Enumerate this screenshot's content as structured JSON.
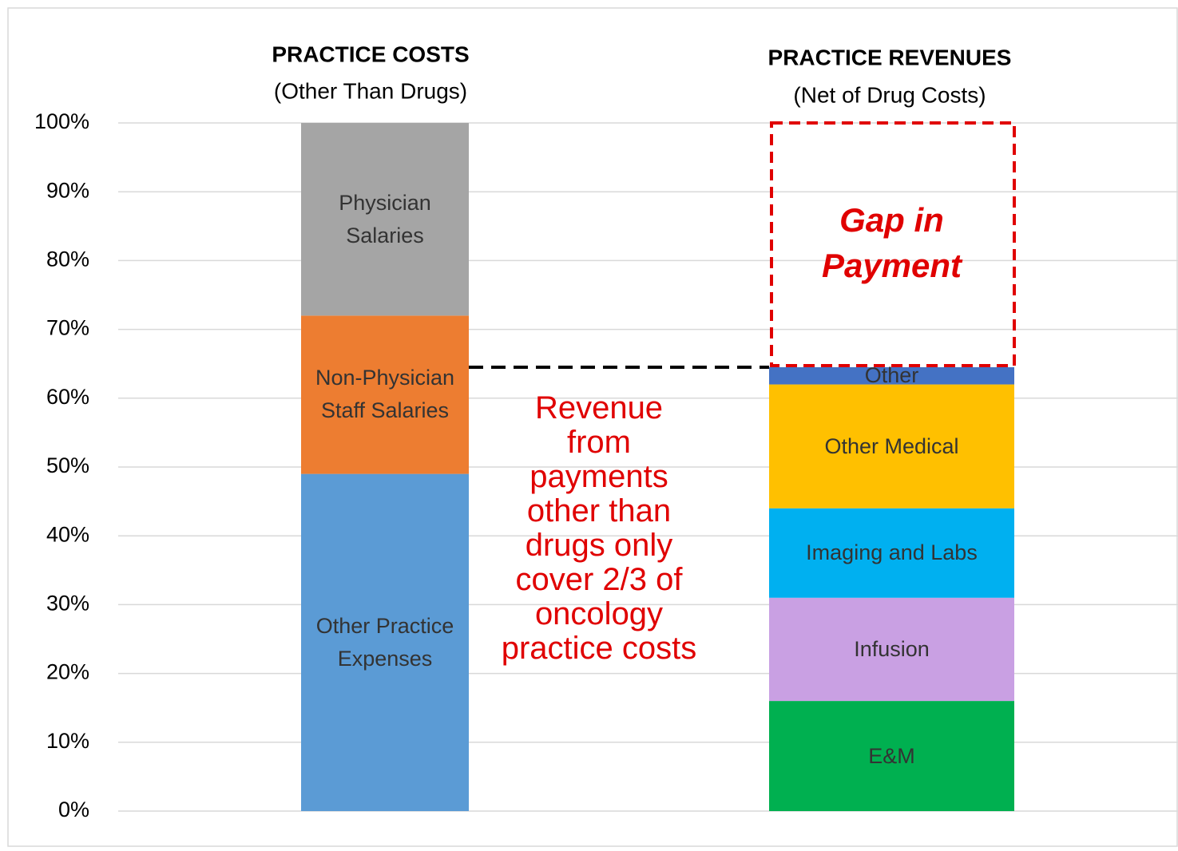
{
  "chart_data": {
    "type": "stacked_bar",
    "ylim": [
      0,
      100
    ],
    "yticks": [
      {
        "value": 0,
        "label": "0%"
      },
      {
        "value": 10,
        "label": "10%"
      },
      {
        "value": 20,
        "label": "20%"
      },
      {
        "value": 30,
        "label": "30%"
      },
      {
        "value": 40,
        "label": "40%"
      },
      {
        "value": 50,
        "label": "50%"
      },
      {
        "value": 60,
        "label": "60%"
      },
      {
        "value": 70,
        "label": "70%"
      },
      {
        "value": 80,
        "label": "80%"
      },
      {
        "value": 90,
        "label": "90%"
      },
      {
        "value": 100,
        "label": "100%"
      }
    ],
    "grid": true,
    "bars": [
      {
        "category": "PRACTICE COSTS",
        "note": "(Other Than Drugs)",
        "segments": [
          {
            "name": "Other Practice Expenses",
            "color": "#5b9bd5",
            "value": 49
          },
          {
            "name": "Non-Physician Staff Salaries",
            "color": "#ed7d31",
            "value": 23
          },
          {
            "name": "Physician Salaries",
            "color": "#a5a5a5",
            "value": 28
          }
        ]
      },
      {
        "category": "PRACTICE REVENUES",
        "note": "(Net of Drug Costs)",
        "segments": [
          {
            "name": "E&M",
            "color": "#00b050",
            "value": 16
          },
          {
            "name": "Infusion",
            "color": "#c9a0e3",
            "value": 15
          },
          {
            "name": "Imaging and Labs",
            "color": "#00b0f0",
            "value": 13
          },
          {
            "name": "Other Medical",
            "color": "#ffc000",
            "value": 18
          },
          {
            "name": "Other",
            "color": "#4472c4",
            "value": 2.5
          }
        ],
        "gap": {
          "name": "Gap in Payment",
          "color": "#e00000",
          "value": 35.5
        }
      }
    ],
    "annotation": "Revenue from payments other than drugs only cover 2/3 of oncology practice costs"
  }
}
